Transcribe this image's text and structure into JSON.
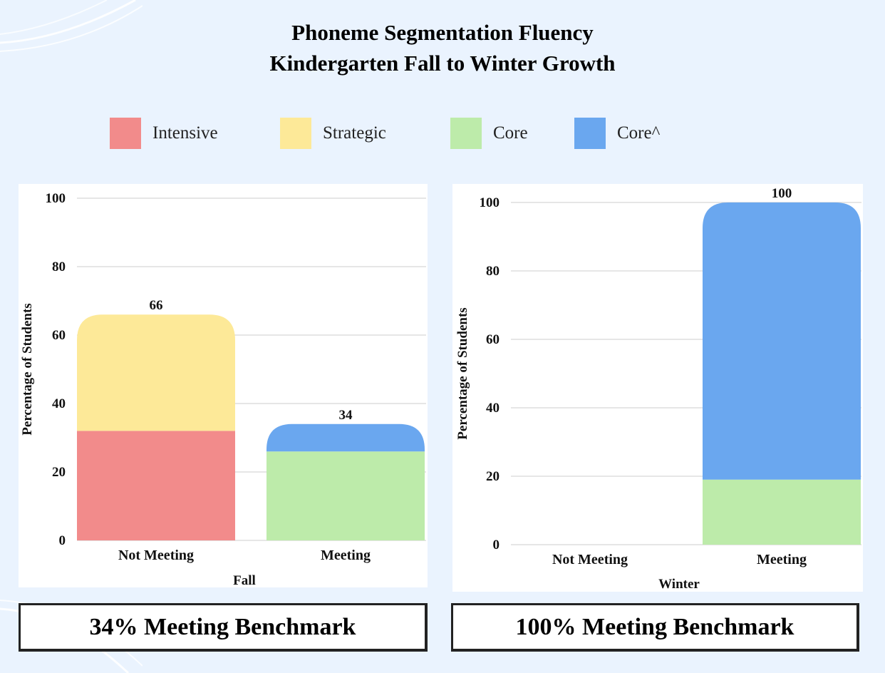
{
  "title_line1": "Phoneme Segmentation Fluency",
  "title_line2": "Kindergarten Fall to Winter Growth",
  "legend": [
    {
      "label": "Intensive",
      "color": "#f28b8b"
    },
    {
      "label": "Strategic",
      "color": "#fde998"
    },
    {
      "label": "Core",
      "color": "#bdebaa"
    },
    {
      "label": "Core^",
      "color": "#6aa7ef"
    }
  ],
  "chart_data": [
    {
      "type": "bar",
      "stacked": true,
      "xlabel": "Fall",
      "ylabel": "Percentage of Students",
      "ylim": [
        0,
        100
      ],
      "yticks": [
        0,
        20,
        40,
        60,
        80,
        100
      ],
      "grid": true,
      "categories": [
        "Not Meeting",
        "Meeting"
      ],
      "series": [
        {
          "name": "Intensive",
          "values": [
            32,
            0
          ]
        },
        {
          "name": "Strategic",
          "values": [
            34,
            0
          ]
        },
        {
          "name": "Core",
          "values": [
            0,
            26
          ]
        },
        {
          "name": "Core^",
          "values": [
            0,
            8
          ]
        }
      ],
      "totals": [
        66,
        34
      ],
      "summary": "34% Meeting Benchmark"
    },
    {
      "type": "bar",
      "stacked": true,
      "xlabel": "Winter",
      "ylabel": "Percentage of Students",
      "ylim": [
        0,
        100
      ],
      "yticks": [
        0,
        20,
        40,
        60,
        80,
        100
      ],
      "grid": true,
      "categories": [
        "Not Meeting",
        "Meeting"
      ],
      "series": [
        {
          "name": "Intensive",
          "values": [
            0,
            0
          ]
        },
        {
          "name": "Strategic",
          "values": [
            0,
            0
          ]
        },
        {
          "name": "Core",
          "values": [
            0,
            19
          ]
        },
        {
          "name": "Core^",
          "values": [
            0,
            81
          ]
        }
      ],
      "totals": [
        null,
        100
      ],
      "summary": "100% Meeting Benchmark"
    }
  ]
}
